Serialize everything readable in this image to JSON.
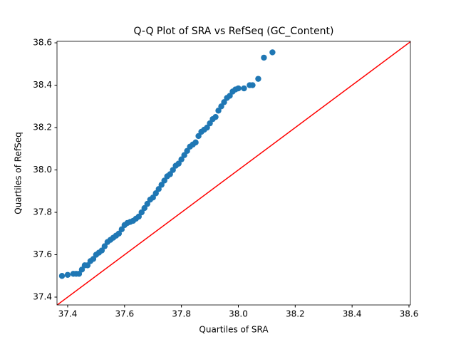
{
  "chart_data": {
    "type": "scatter",
    "title": "Q-Q Plot of SRA vs RefSeq (GC_Content)",
    "x_label": "Quartiles of SRA",
    "y_label": "Quartiles of RefSeq",
    "xlim": [
      37.3625,
      38.605
    ],
    "ylim": [
      37.363,
      38.607
    ],
    "xticks": [
      37.4,
      37.6,
      37.8,
      {
        "value": 38,
        "label": "38.0"
      },
      38.2,
      38.4,
      38.6
    ],
    "yticks": [
      37.4,
      37.6,
      37.8,
      {
        "value": 38,
        "label": "38.0"
      },
      38.2,
      38.4,
      38.6
    ],
    "series": [
      {
        "color": "#1f77b4",
        "x": [
          37.38,
          37.4,
          37.42,
          37.43,
          37.44,
          37.45,
          37.46,
          37.47,
          37.48,
          37.49,
          37.5,
          37.51,
          37.52,
          37.53,
          37.54,
          37.55,
          37.56,
          37.57,
          37.58,
          37.59,
          37.6,
          37.61,
          37.62,
          37.63,
          37.64,
          37.65,
          37.66,
          37.67,
          37.68,
          37.69,
          37.7,
          37.71,
          37.72,
          37.73,
          37.74,
          37.75,
          37.76,
          37.77,
          37.78,
          37.79,
          37.8,
          37.81,
          37.82,
          37.83,
          37.84,
          37.85,
          37.86,
          37.87,
          37.88,
          37.89,
          37.9,
          37.91,
          37.92,
          37.93,
          37.94,
          37.95,
          37.96,
          37.97,
          37.98,
          37.99,
          38.0,
          38.02,
          38.04,
          38.05,
          38.07,
          38.09,
          38.12
        ],
        "values": [
          37.5,
          37.505,
          37.51,
          37.51,
          37.51,
          37.53,
          37.55,
          37.55,
          37.57,
          37.58,
          37.6,
          37.61,
          37.62,
          37.64,
          37.66,
          37.67,
          37.68,
          37.69,
          37.7,
          37.72,
          37.74,
          37.75,
          37.755,
          37.76,
          37.77,
          37.78,
          37.8,
          37.82,
          37.84,
          37.86,
          37.87,
          37.89,
          37.91,
          37.93,
          37.95,
          37.97,
          37.98,
          38.0,
          38.02,
          38.03,
          38.05,
          38.07,
          38.09,
          38.11,
          38.12,
          38.13,
          38.16,
          38.18,
          38.19,
          38.2,
          38.22,
          38.24,
          38.25,
          38.28,
          38.3,
          38.32,
          38.34,
          38.35,
          38.37,
          38.38,
          38.385,
          38.385,
          38.4,
          38.4,
          38.43,
          38.53,
          38.555
        ]
      }
    ],
    "reference_line": {
      "color": "#ff0000",
      "x": [
        37.3625,
        38.605
      ],
      "y": [
        37.3625,
        38.605
      ]
    }
  }
}
